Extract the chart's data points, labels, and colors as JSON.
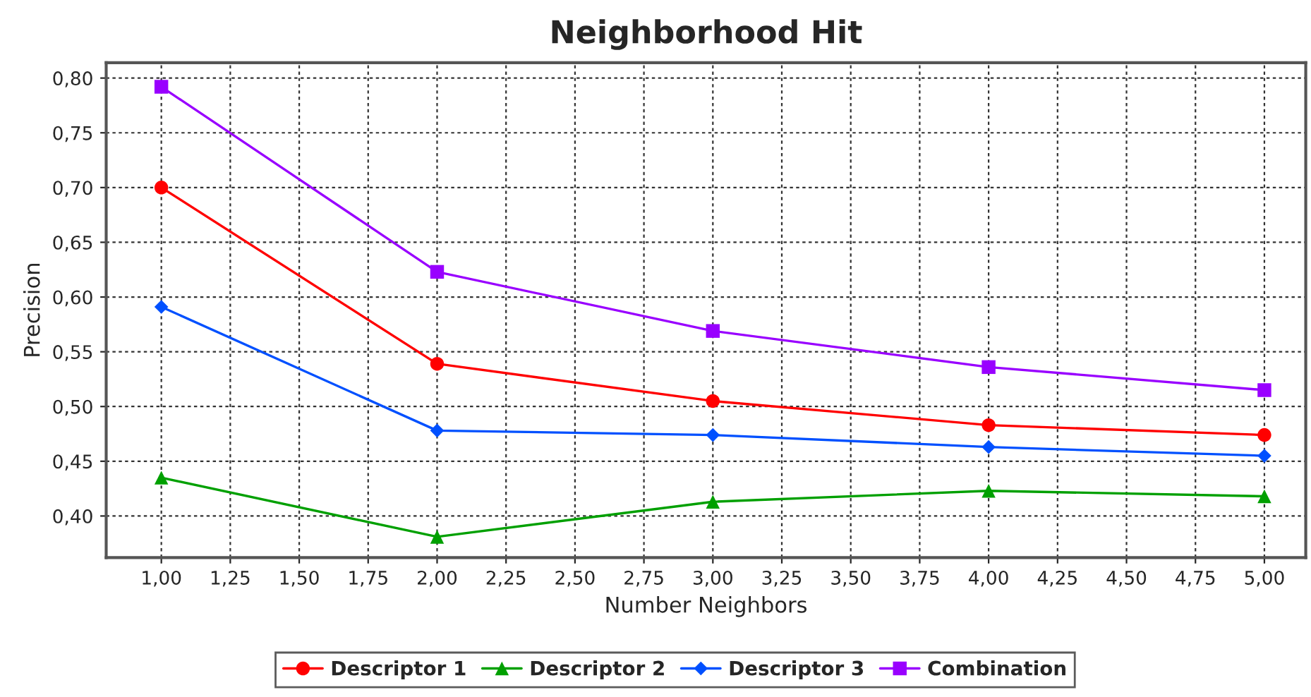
{
  "chart_data": {
    "type": "line",
    "title": "Neighborhood Hit",
    "xlabel": "Number Neighbors",
    "ylabel": "Precision",
    "x": [
      1,
      2,
      3,
      4,
      5
    ],
    "series": [
      {
        "name": "Descriptor 1",
        "color": "#ff0000",
        "marker": "circle",
        "values": [
          0.7,
          0.539,
          0.505,
          0.483,
          0.474
        ]
      },
      {
        "name": "Descriptor 2",
        "color": "#00a000",
        "marker": "triangle",
        "values": [
          0.435,
          0.381,
          0.413,
          0.423,
          0.418
        ]
      },
      {
        "name": "Descriptor 3",
        "color": "#0050ff",
        "marker": "diamond",
        "values": [
          0.591,
          0.478,
          0.474,
          0.463,
          0.455
        ]
      },
      {
        "name": "Combination",
        "color": "#9900ff",
        "marker": "square",
        "values": [
          0.792,
          0.623,
          0.569,
          0.536,
          0.515
        ]
      }
    ],
    "xlim": [
      0.8,
      5.15
    ],
    "ylim": [
      0.362,
      0.814
    ],
    "xticks": [
      {
        "value": 1.0,
        "label": "1,00"
      },
      {
        "value": 1.25,
        "label": "1,25"
      },
      {
        "value": 1.5,
        "label": "1,50"
      },
      {
        "value": 1.75,
        "label": "1,75"
      },
      {
        "value": 2.0,
        "label": "2,00"
      },
      {
        "value": 2.25,
        "label": "2,25"
      },
      {
        "value": 2.5,
        "label": "2,50"
      },
      {
        "value": 2.75,
        "label": "2,75"
      },
      {
        "value": 3.0,
        "label": "3,00"
      },
      {
        "value": 3.25,
        "label": "3,25"
      },
      {
        "value": 3.5,
        "label": "3,50"
      },
      {
        "value": 3.75,
        "label": "3,75"
      },
      {
        "value": 4.0,
        "label": "4,00"
      },
      {
        "value": 4.25,
        "label": "4,25"
      },
      {
        "value": 4.5,
        "label": "4,50"
      },
      {
        "value": 4.75,
        "label": "4,75"
      },
      {
        "value": 5.0,
        "label": "5,00"
      }
    ],
    "yticks": [
      {
        "value": 0.4,
        "label": "0,40"
      },
      {
        "value": 0.45,
        "label": "0,45"
      },
      {
        "value": 0.5,
        "label": "0,50"
      },
      {
        "value": 0.55,
        "label": "0,55"
      },
      {
        "value": 0.6,
        "label": "0,60"
      },
      {
        "value": 0.65,
        "label": "0,65"
      },
      {
        "value": 0.7,
        "label": "0,70"
      },
      {
        "value": 0.75,
        "label": "0,75"
      },
      {
        "value": 0.8,
        "label": "0,80"
      }
    ],
    "grid": true,
    "legend": "bottom",
    "line_style": "solid"
  }
}
